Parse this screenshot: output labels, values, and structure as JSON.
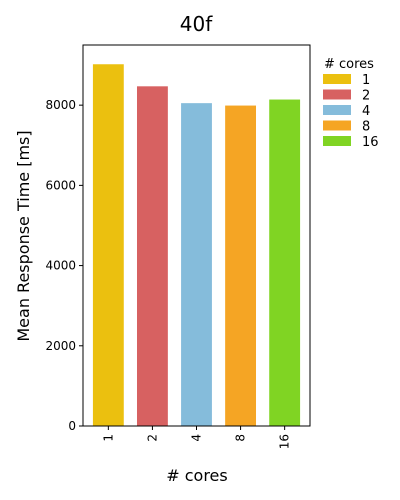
{
  "chart_data": {
    "type": "bar",
    "title": "40f",
    "xlabel": "# cores",
    "ylabel": "Mean Response Time [ms]",
    "categories": [
      "1",
      "2",
      "4",
      "8",
      "16"
    ],
    "values": [
      9020,
      8470,
      8050,
      7990,
      8140
    ],
    "colors": [
      "#ebc00f",
      "#d76161",
      "#85bcdb",
      "#f5a524",
      "#80d423"
    ],
    "ylim": [
      0,
      9500
    ],
    "yticks": [
      0,
      2000,
      4000,
      6000,
      8000
    ],
    "grid": false,
    "legend": {
      "title": "# cores",
      "placement": "right",
      "entries": [
        "1",
        "2",
        "4",
        "8",
        "16"
      ]
    }
  }
}
